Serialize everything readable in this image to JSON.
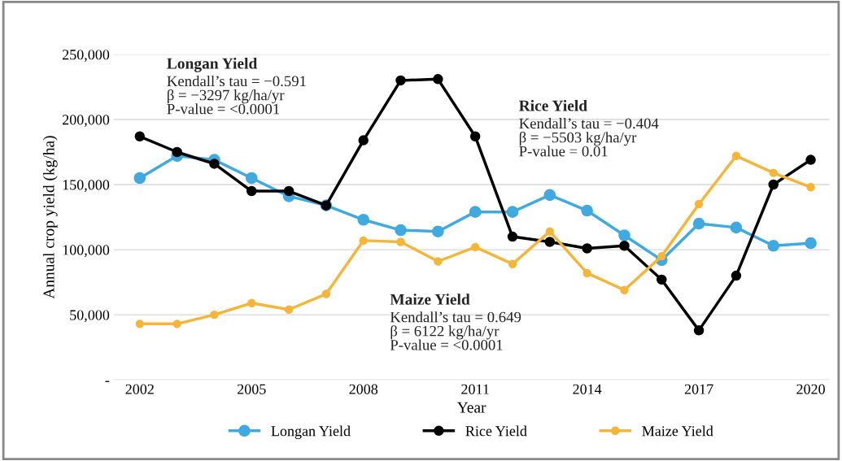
{
  "chart_data": {
    "type": "line",
    "xlabel": "Year",
    "ylabel": "Annual crop yield (kg/ha)",
    "x": [
      2002,
      2003,
      2004,
      2005,
      2006,
      2007,
      2008,
      2009,
      2010,
      2011,
      2012,
      2013,
      2014,
      2015,
      2016,
      2017,
      2018,
      2019,
      2020
    ],
    "series": [
      {
        "name": "Longan Yield",
        "color": "#3fa9e0",
        "values": [
          155000,
          172000,
          169000,
          155000,
          141000,
          134000,
          123000,
          115000,
          114000,
          129000,
          129000,
          142000,
          130000,
          111000,
          92000,
          120000,
          117000,
          103000,
          105000
        ]
      },
      {
        "name": "Rice Yield",
        "color": "#000000",
        "values": [
          187000,
          175000,
          166000,
          145000,
          145000,
          134000,
          184000,
          230000,
          231000,
          187000,
          110000,
          106000,
          101000,
          103000,
          77000,
          38000,
          80000,
          150000,
          169000
        ]
      },
      {
        "name": "Maize Yield",
        "color": "#f4b63a",
        "values": [
          43000,
          43000,
          50000,
          59000,
          54000,
          66000,
          107000,
          106000,
          91000,
          102000,
          89000,
          114000,
          82000,
          69000,
          95000,
          135000,
          172000,
          159000,
          148000
        ]
      }
    ],
    "xlim": [
      2001.3,
      2020.5
    ],
    "xticks": [
      2002,
      2005,
      2008,
      2011,
      2014,
      2017,
      2020
    ],
    "ylim": [
      0,
      250000
    ],
    "yticks": [
      {
        "value": 0,
        "label": "-"
      },
      {
        "value": 50000,
        "label": "50,000"
      },
      {
        "value": 100000,
        "label": "100,000"
      },
      {
        "value": 150000,
        "label": "150,000"
      },
      {
        "value": 200000,
        "label": "200,000"
      },
      {
        "value": 250000,
        "label": "250,000"
      }
    ],
    "grid": "y",
    "legend": "bottom",
    "marker": "circle",
    "line_style": "solid",
    "annotations": [
      "Longan Yield\nKendall’s tau = −0.591\nβ = −3297 kg/ha/yr\nP-value = <0.0001",
      "Rice Yield\nKendall’s tau = −0.404\nβ = −5503 kg/ha/yr\nP-value = 0.01",
      "Maize Yield\nKendall’s tau = 0.649\nβ = 6122 kg/ha/yr\nP-value = <0.0001"
    ]
  }
}
